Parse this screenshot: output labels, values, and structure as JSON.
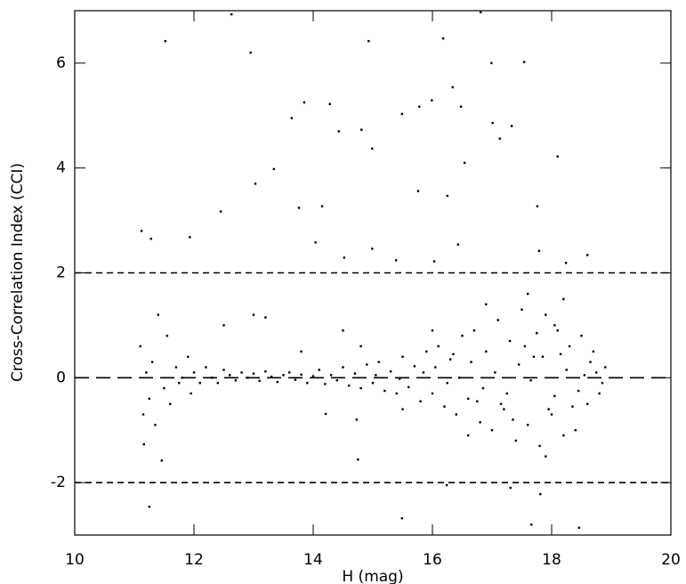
{
  "chart_data": {
    "type": "scatter",
    "xlabel": "H (mag)",
    "ylabel": "Cross-Correlation Index (CCI)",
    "xlim": [
      10,
      20
    ],
    "ylim": [
      -3,
      7
    ],
    "xticks": [
      10,
      12,
      14,
      16,
      18,
      20
    ],
    "yticks": [
      -2,
      0,
      2,
      4,
      6
    ],
    "color": "#000000",
    "hlines": [
      {
        "value": 2,
        "style": "short"
      },
      {
        "value": 0,
        "style": "long"
      },
      {
        "value": -2,
        "style": "short"
      }
    ],
    "x": [
      11.12,
      11.52,
      11.28,
      11.93,
      12.45,
      12.95,
      13.03,
      12.63,
      13.34,
      13.64,
      13.85,
      13.76,
      14.15,
      14.28,
      14.43,
      14.81,
      14.93,
      14.99,
      15.49,
      15.78,
      15.99,
      16.18,
      16.34,
      16.48,
      16.54,
      16.81,
      16.99,
      17.13,
      17.54,
      17.33,
      18.1,
      17.76,
      17.01,
      16.25,
      15.76,
      14.04,
      14.99,
      14.52,
      15.39,
      16.03,
      16.43,
      18.24,
      17.79,
      18.6,
      11.25,
      15.49,
      17.66,
      18.46,
      14.73,
      14.21,
      14.75,
      11.46,
      11.16,
      17.31,
      17.81,
      16.24,
      11.1,
      11.15,
      11.2,
      11.25,
      11.3,
      11.35,
      11.4,
      11.5,
      11.55,
      11.6,
      11.7,
      11.75,
      11.8,
      11.9,
      11.95,
      12,
      12.1,
      12.2,
      12.3,
      12.4,
      12.5,
      12.6,
      12.7,
      12.8,
      12.9,
      13,
      13.1,
      13.2,
      13.3,
      13.4,
      13.5,
      13.6,
      13.7,
      13.8,
      13.9,
      14,
      14.1,
      14.2,
      14.3,
      14.4,
      14.5,
      14.6,
      14.7,
      14.8,
      14.9,
      15,
      15.1,
      15.2,
      15.3,
      15.4,
      15.5,
      15.6,
      15.7,
      15.8,
      15.9,
      16,
      16.1,
      16.2,
      16.3,
      16.4,
      16.5,
      16.6,
      16.7,
      16.8,
      16.9,
      17,
      17.1,
      17.2,
      17.3,
      17.4,
      17.5,
      17.6,
      17.7,
      17.8,
      17.9,
      18,
      18.1,
      18.2,
      18.3,
      18.4,
      18.5,
      18.6,
      18.7,
      18.8,
      18.9,
      15.05,
      15.45,
      15.85,
      16.05,
      16.25,
      16.45,
      16.65,
      16.85,
      17.05,
      17.25,
      17.45,
      17.65,
      17.85,
      18.05,
      18.25,
      18.45,
      18.65,
      18.85,
      17.15,
      17.55,
      17.95,
      18.15,
      18.35,
      18.55,
      16.35,
      16.75,
      17.35,
      17.75,
      18.75,
      18.05,
      17.9,
      18.2,
      17.6,
      16.9,
      16.6,
      16,
      15.5,
      14.8,
      13.8,
      13,
      12.5,
      13.2,
      14.5
    ],
    "values": [
      2.8,
      6.42,
      2.65,
      2.68,
      3.17,
      6.2,
      3.7,
      6.93,
      3.98,
      4.95,
      5.25,
      3.24,
      3.27,
      5.22,
      4.7,
      4.73,
      6.42,
      4.37,
      5.03,
      5.17,
      5.29,
      6.47,
      5.54,
      5.17,
      4.1,
      6.97,
      6.0,
      4.56,
      6.02,
      4.8,
      4.22,
      3.27,
      4.86,
      3.47,
      3.56,
      2.58,
      2.46,
      2.29,
      2.24,
      2.22,
      2.54,
      2.19,
      2.42,
      2.34,
      -2.46,
      -2.68,
      -2.8,
      -2.86,
      -0.8,
      -0.69,
      -1.56,
      -1.58,
      -1.27,
      -2.1,
      -2.22,
      -2.05,
      0.6,
      -0.7,
      0.1,
      -0.4,
      0.3,
      -0.9,
      1.2,
      -0.2,
      0.8,
      -0.5,
      0.2,
      -0.1,
      0,
      0.4,
      -0.3,
      0.1,
      -0.1,
      0.2,
      0,
      -0.1,
      0.15,
      0.05,
      -0.05,
      0.1,
      0,
      0.08,
      -0.06,
      0.12,
      0.02,
      -0.08,
      0.05,
      0.1,
      -0.04,
      0.06,
      -0.1,
      0.03,
      0.15,
      -0.12,
      0.05,
      -0.05,
      0.2,
      -0.15,
      0.08,
      -0.2,
      0.25,
      -0.1,
      0.3,
      -0.25,
      0.12,
      -0.3,
      0.4,
      -0.18,
      0.22,
      -0.45,
      0.5,
      -0.3,
      0.6,
      -0.55,
      0.35,
      -0.7,
      0.8,
      -0.4,
      0.9,
      -0.85,
      0.5,
      -1,
      1.1,
      -0.6,
      0.7,
      -1.2,
      1.3,
      -0.9,
      0.4,
      -1.3,
      1.2,
      -0.7,
      0.9,
      -1.1,
      0.6,
      -1,
      0.8,
      -0.5,
      0.5,
      -0.3,
      0.2,
      0.05,
      -0.02,
      0.1,
      0.2,
      -0.1,
      0,
      0.3,
      -0.2,
      0.1,
      -0.3,
      0.25,
      -0.05,
      0.4,
      -0.35,
      0.15,
      -0.25,
      0.3,
      -0.1,
      -0.5,
      0.6,
      -0.6,
      0.45,
      -0.55,
      0.05,
      0.45,
      -0.45,
      -0.8,
      0.85,
      0.1,
      1,
      -1.5,
      1.5,
      1.6,
      1.4,
      -1.1,
      0.9,
      -0.6,
      0.6,
      0.5,
      1.2,
      1,
      1.15,
      0.9
    ]
  }
}
